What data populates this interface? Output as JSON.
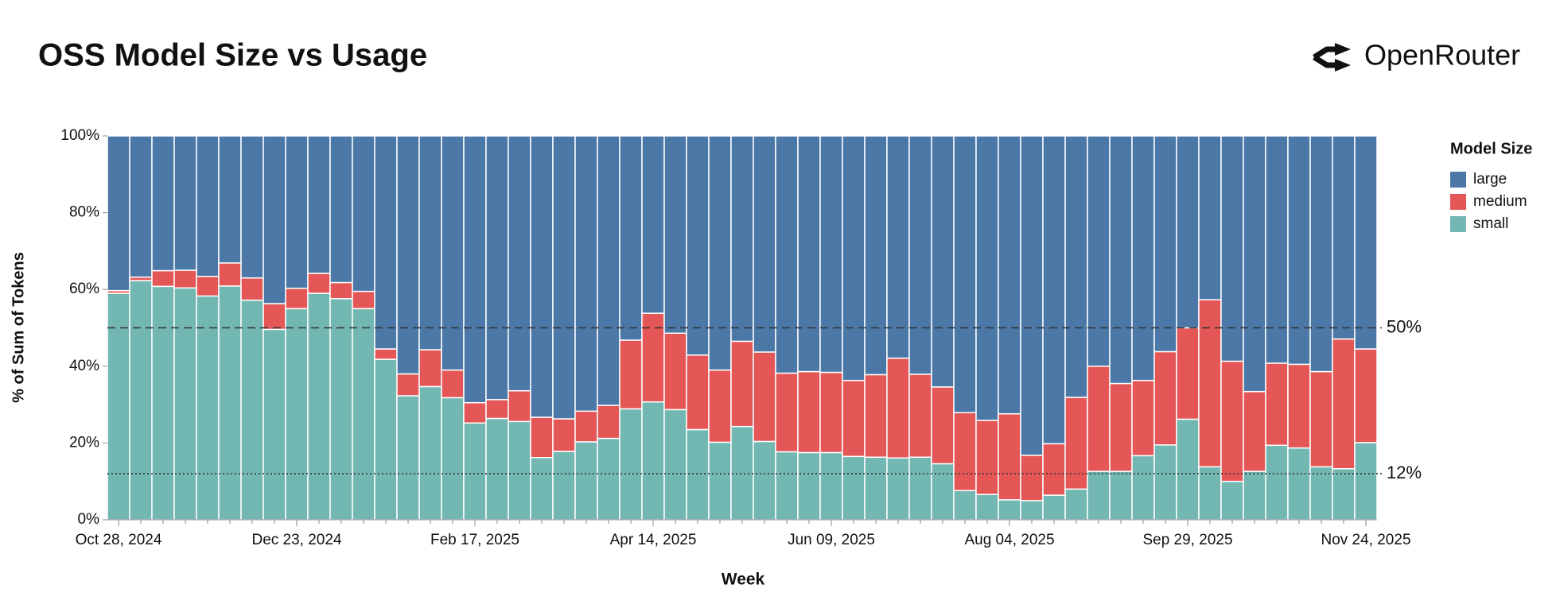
{
  "chart_data": {
    "type": "stacked_bar_percent",
    "title": "OSS Model Size vs Usage",
    "brand": "OpenRouter",
    "x_label": "Week",
    "y_label": "% of Sum of Tokens",
    "legend_title": "Model Size",
    "legend_position": "right",
    "categories": [
      "Oct 28, 2024",
      null,
      null,
      null,
      null,
      null,
      null,
      null,
      "Dec 23, 2024",
      null,
      null,
      null,
      null,
      null,
      null,
      null,
      "Feb 17, 2025",
      null,
      null,
      null,
      null,
      null,
      null,
      null,
      "Apr 14, 2025",
      null,
      null,
      null,
      null,
      null,
      null,
      null,
      "Jun 09, 2025",
      null,
      null,
      null,
      null,
      null,
      null,
      null,
      "Aug 04, 2025",
      null,
      null,
      null,
      null,
      null,
      null,
      null,
      "Sep 29, 2025",
      null,
      null,
      null,
      null,
      null,
      null,
      null,
      "Nov 24, 2025"
    ],
    "series": [
      {
        "name": "large",
        "color": "#4c78a8",
        "values": [
          40.3,
          36.8,
          35.1,
          35.0,
          36.6,
          33.1,
          37.0,
          43.7,
          39.7,
          35.8,
          38.2,
          40.5,
          55.5,
          62.0,
          55.7,
          61.0,
          69.5,
          68.7,
          66.4,
          73.3,
          73.7,
          71.7,
          70.2,
          53.2,
          46.2,
          51.4,
          57.1,
          61.0,
          53.5,
          56.3,
          61.8,
          61.4,
          61.6,
          63.7,
          62.2,
          57.9,
          62.1,
          65.4,
          72.1,
          74.1,
          72.4,
          83.2,
          80.2,
          68.1,
          60.0,
          64.5,
          63.7,
          56.2,
          50.0,
          42.7,
          58.7,
          66.6,
          59.2,
          59.5,
          61.4,
          52.9,
          55.5
        ]
      },
      {
        "name": "medium",
        "color": "#e45756",
        "values": [
          0.7,
          0.9,
          4.1,
          4.6,
          5.1,
          6.0,
          5.8,
          6.7,
          5.3,
          5.2,
          4.2,
          4.5,
          2.7,
          5.7,
          9.6,
          7.2,
          5.3,
          4.9,
          8.0,
          10.5,
          8.5,
          8.0,
          8.6,
          17.9,
          23.1,
          19.9,
          19.4,
          18.8,
          22.2,
          23.3,
          20.5,
          21.1,
          20.9,
          19.8,
          21.5,
          26.0,
          21.6,
          20.0,
          20.3,
          19.3,
          22.4,
          11.8,
          13.4,
          23.9,
          27.4,
          22.9,
          19.6,
          24.3,
          23.8,
          43.5,
          31.3,
          20.8,
          21.4,
          21.8,
          24.8,
          33.8,
          24.4
        ]
      },
      {
        "name": "small",
        "color": "#72b7b2",
        "values": [
          59.0,
          62.3,
          60.8,
          60.4,
          58.3,
          60.9,
          57.2,
          49.6,
          55.0,
          59.0,
          57.6,
          55.0,
          41.8,
          32.3,
          34.7,
          31.8,
          25.2,
          26.4,
          25.6,
          16.2,
          17.8,
          20.3,
          21.2,
          28.9,
          30.7,
          28.7,
          23.5,
          20.2,
          24.3,
          20.4,
          17.7,
          17.5,
          17.5,
          16.5,
          16.3,
          16.1,
          16.3,
          14.6,
          7.6,
          6.6,
          5.2,
          5.0,
          6.4,
          8.0,
          12.6,
          12.6,
          16.7,
          19.5,
          26.2,
          13.8,
          10.0,
          12.6,
          19.4,
          18.7,
          13.8,
          13.3,
          20.1
        ]
      }
    ],
    "ylim": [
      0,
      100
    ],
    "yticks": [
      {
        "value": 0,
        "label": "0%"
      },
      {
        "value": 20,
        "label": "20%"
      },
      {
        "value": 40,
        "label": "40%"
      },
      {
        "value": 60,
        "label": "60%"
      },
      {
        "value": 80,
        "label": "80%"
      },
      {
        "value": 100,
        "label": "100%"
      }
    ],
    "reference_lines": [
      {
        "value": 50,
        "label": "50%",
        "style": "dashed"
      },
      {
        "value": 12,
        "label": "12%",
        "style": "dotted"
      }
    ]
  }
}
